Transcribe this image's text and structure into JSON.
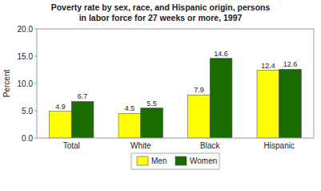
{
  "chart_data": {
    "type": "bar",
    "title": "Poverty rate by sex, race, and Hispanic origin, persons\nin labor force for 27 weeks or more, 1997",
    "categories": [
      "Total",
      "White",
      "Black",
      "Hispanic"
    ],
    "series": [
      {
        "name": "Men",
        "color": "#FFFF00",
        "values": [
          4.9,
          4.5,
          7.9,
          12.4
        ]
      },
      {
        "name": "Women",
        "color": "#1A6B00",
        "values": [
          6.7,
          5.5,
          14.6,
          12.6
        ]
      }
    ],
    "ylabel": "Percent",
    "ylim": [
      0,
      20.0
    ],
    "yticks": [
      {
        "value": 0,
        "label": "0.0"
      },
      {
        "value": 5,
        "label": "5.0"
      },
      {
        "value": 10,
        "label": "10.0"
      },
      {
        "value": 15,
        "label": "15.0"
      },
      {
        "value": 20,
        "label": "20.0"
      }
    ],
    "data_labels": true,
    "grid": false,
    "legend": "bottom"
  }
}
